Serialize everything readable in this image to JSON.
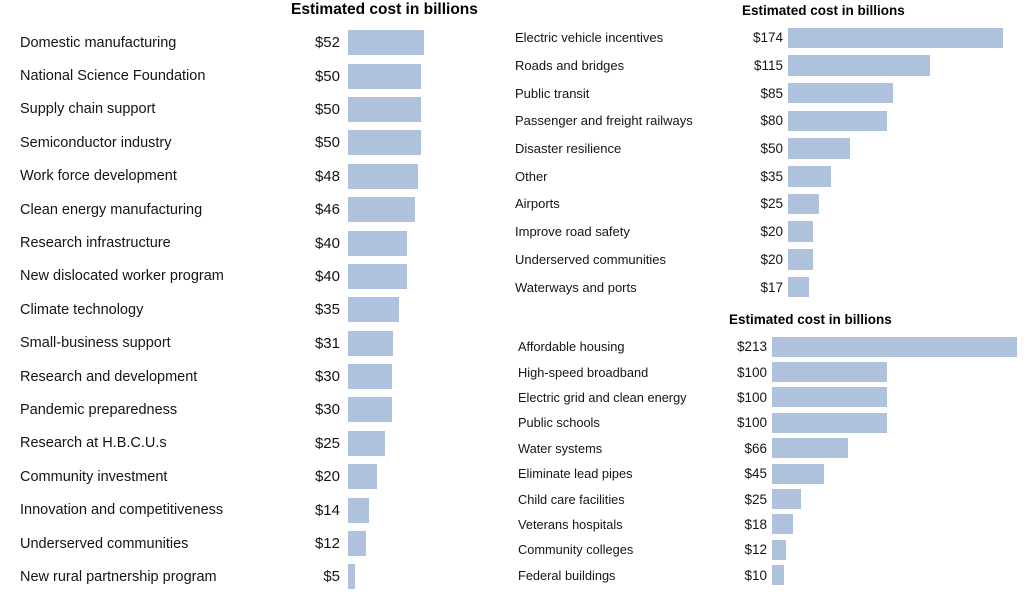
{
  "bar_color": "#aec2de",
  "chart_data": [
    {
      "type": "bar",
      "orientation": "horizontal",
      "title": "Estimated cost in billions",
      "unit": "billions of dollars",
      "xlim": [
        0,
        52
      ],
      "grid": false,
      "legend": "none",
      "categories": [
        "Domestic manufacturing",
        "National Science Foundation",
        "Supply chain support",
        "Semiconductor industry",
        "Work force development",
        "Clean energy manufacturing",
        "Research infrastructure",
        "New dislocated worker program",
        "Climate technology",
        "Small-business support",
        "Research and development",
        "Pandemic preparedness",
        "Research at H.B.C.U.s",
        "Community investment",
        "Innovation and competitiveness",
        "Underserved communities",
        "New rural partnership program"
      ],
      "values": [
        52,
        50,
        50,
        50,
        48,
        46,
        40,
        40,
        35,
        31,
        30,
        30,
        25,
        20,
        14,
        12,
        5
      ],
      "value_labels": [
        "$52",
        "$50",
        "$50",
        "$50",
        "$48",
        "$46",
        "$40",
        "$40",
        "$35",
        "$31",
        "$30",
        "$30",
        "$25",
        "$20",
        "$14",
        "$12",
        "$5"
      ]
    },
    {
      "type": "bar",
      "orientation": "horizontal",
      "title": "Estimated cost in billions",
      "unit": "billions of dollars",
      "xlim": [
        0,
        174
      ],
      "grid": false,
      "legend": "none",
      "categories": [
        "Electric vehicle incentives",
        "Roads and bridges",
        "Public transit",
        "Passenger and freight railways",
        "Disaster resilience",
        "Other",
        "Airports",
        "Improve road safety",
        "Underserved communities",
        "Waterways and ports"
      ],
      "values": [
        174,
        115,
        85,
        80,
        50,
        35,
        25,
        20,
        20,
        17
      ],
      "value_labels": [
        "$174",
        "$115",
        "$85",
        "$80",
        "$50",
        "$35",
        "$25",
        "$20",
        "$20",
        "$17"
      ]
    },
    {
      "type": "bar",
      "orientation": "horizontal",
      "title": "Estimated cost in billions",
      "unit": "billions of dollars",
      "xlim": [
        0,
        213
      ],
      "grid": false,
      "legend": "none",
      "categories": [
        "Affordable housing",
        "High-speed broadband",
        "Electric grid and clean energy",
        "Public schools",
        "Water systems",
        "Eliminate lead pipes",
        "Child care facilities",
        "Veterans hospitals",
        "Community colleges",
        "Federal buildings"
      ],
      "values": [
        213,
        100,
        100,
        100,
        66,
        45,
        25,
        18,
        12,
        10
      ],
      "value_labels": [
        "$213",
        "$100",
        "$100",
        "$100",
        "$66",
        "$45",
        "$25",
        "$18",
        "$12",
        "$10"
      ]
    }
  ]
}
